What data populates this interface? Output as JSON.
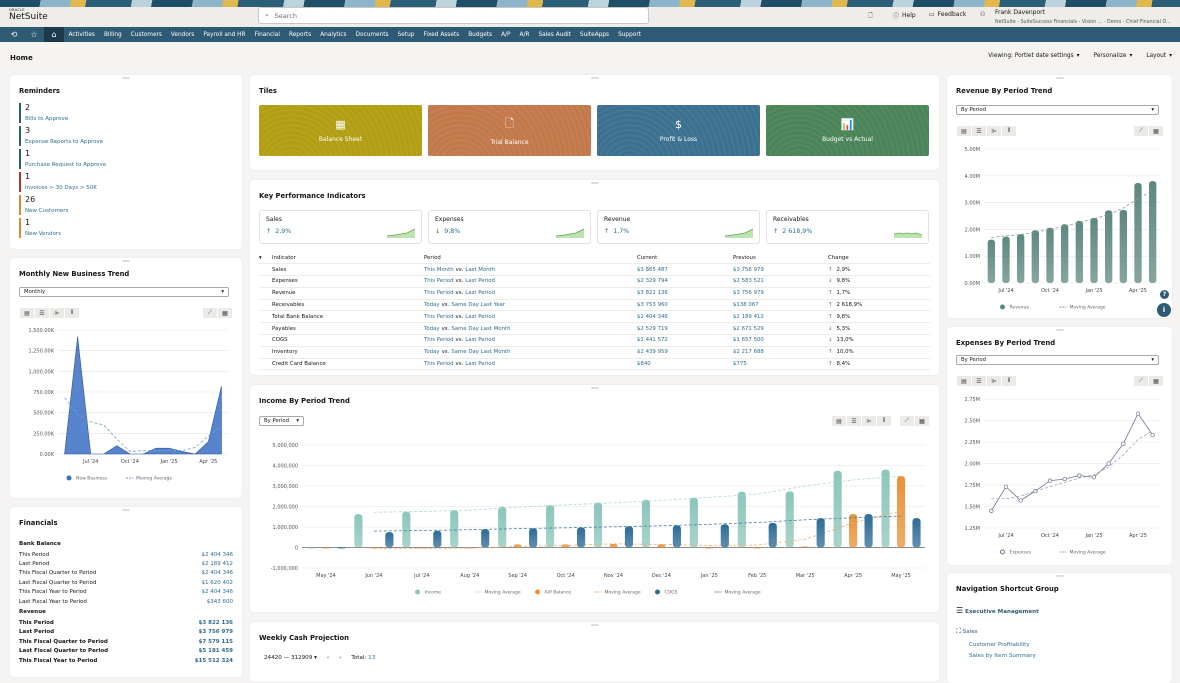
{
  "app": {
    "logo_top": "ORACLE",
    "logo": "NetSuite",
    "search_placeholder": "Search",
    "help": "Help",
    "feedback": "Feedback",
    "user_name": "Frank Davenport",
    "user_role": "NetSuite - SuiteSuccess Financials - Vision ...  - Demo - Chief Financial O..."
  },
  "nav": [
    "Activities",
    "Billing",
    "Customers",
    "Vendors",
    "Payroll and HR",
    "Financial",
    "Reports",
    "Analytics",
    "Documents",
    "Setup",
    "Fixed Assets",
    "Budgets",
    "A/P",
    "A/R",
    "Sales Audit",
    "SuiteApps",
    "Support"
  ],
  "page": {
    "title": "Home",
    "viewing": "Viewing: Portlet date settings",
    "personalize": "Personalize",
    "layout": "Layout"
  },
  "reminders": {
    "title": "Reminders",
    "items": [
      {
        "count": "2",
        "label": "Bills to Approve",
        "color": "#2f5a73"
      },
      {
        "count": "3",
        "label": "Expense Reports to Approve",
        "color": "#2f5a73"
      },
      {
        "count": "1",
        "label": "Purchase Request to Approve",
        "color": "#2f5a73"
      },
      {
        "count": "1",
        "label": "Invoices > 30 Days > 50K",
        "color": "#b8322a"
      },
      {
        "count": "26",
        "label": "New Customers",
        "color": "#d98a2b"
      },
      {
        "count": "1",
        "label": "New Vendors",
        "color": "#d98a2b"
      }
    ]
  },
  "monthly": {
    "title": "Monthly New Business Trend",
    "select": "Monthly"
  },
  "financials": {
    "title": "Financials",
    "bank_title": "Bank Balance",
    "bank": [
      [
        "This Period",
        "$2 404 346"
      ],
      [
        "Last Period",
        "$2 189 412"
      ],
      [
        "This Fiscal Quarter to Period",
        "$2 404 346"
      ],
      [
        "Last Fiscal Quarter to Period",
        "$1 620 402"
      ],
      [
        "This Fiscal Year to Period",
        "$2 404 346"
      ],
      [
        "Last Fiscal Year to Period",
        "$343 600"
      ]
    ],
    "revenue_title": "Revenue",
    "revenue": [
      [
        "This Period",
        "$3 822 136"
      ],
      [
        "Last Period",
        "$3 756 979"
      ],
      [
        "This Fiscal Quarter to Period",
        "$7 579 115"
      ],
      [
        "Last Fiscal Quarter to Period",
        "$5 181 459"
      ],
      [
        "This Fiscal Year to Period",
        "$15 512 324"
      ]
    ]
  },
  "tiles": {
    "title": "Tiles",
    "items": [
      {
        "label": "Balance Sheet",
        "color": "#b29e12",
        "icon": "spreadsheet-edit-icon"
      },
      {
        "label": "Trial Balance",
        "color": "#c2784a",
        "icon": "document-icon"
      },
      {
        "label": "Profit & Loss",
        "color": "#3c7090",
        "icon": "dollar-document-icon"
      },
      {
        "label": "Budget vs Actual",
        "color": "#4a8458",
        "icon": "report-chart-icon"
      }
    ]
  },
  "kpi": {
    "title": "Key Performance Indicators",
    "cards": [
      {
        "label": "Sales",
        "dir": "up",
        "value": "2,9%"
      },
      {
        "label": "Expenses",
        "dir": "down",
        "value": "9,8%"
      },
      {
        "label": "Revenue",
        "dir": "up",
        "value": "1,7%"
      },
      {
        "label": "Receivables",
        "dir": "up",
        "value": "2 618,9%"
      }
    ],
    "headers": [
      "Indicator",
      "Period",
      "Current",
      "Previous",
      "Change"
    ],
    "rows": [
      {
        "indicator": "Sales",
        "p1": "This Month",
        "p2": "Last Month",
        "current": "$3 865 487",
        "previous": "$3 756 979",
        "dir": "up",
        "change": "2,9%"
      },
      {
        "indicator": "Expenses",
        "p1": "This Period",
        "p2": "Last Period",
        "current": "$2 329 794",
        "previous": "$2 583 521",
        "dir": "down",
        "change": "9,8%"
      },
      {
        "indicator": "Revenue",
        "p1": "This Period",
        "p2": "Last Period",
        "current": "$3 822 136",
        "previous": "$3 756 979",
        "dir": "up",
        "change": "1,7%"
      },
      {
        "indicator": "Receivables",
        "p1": "Today",
        "p2": "Same Day Last Year",
        "current": "$3 753 960",
        "previous": "$138 067",
        "dir": "up",
        "change": "2 618,9%"
      },
      {
        "indicator": "Total Bank Balance",
        "p1": "This Period",
        "p2": "Last Period",
        "current": "$2 404 346",
        "previous": "$2 189 412",
        "dir": "up",
        "change": "9,8%"
      },
      {
        "indicator": "Payables",
        "p1": "Today",
        "p2": "Same Day Last Month",
        "current": "$2 529 719",
        "previous": "$2 671 529",
        "dir": "down",
        "change": "5,3%"
      },
      {
        "indicator": "COGS",
        "p1": "This Period",
        "p2": "Last Period",
        "current": "$1 441 572",
        "previous": "$1 657 500",
        "dir": "down",
        "change": "13,0%"
      },
      {
        "indicator": "Inventory",
        "p1": "Today",
        "p2": "Same Day Last Month",
        "current": "$2 439 959",
        "previous": "$2 217 688",
        "dir": "up",
        "change": "10,0%"
      },
      {
        "indicator": "Credit Card Balance",
        "p1": "This Period",
        "p2": "Last Period",
        "current": "$840",
        "previous": "$775",
        "dir": "up",
        "change": "8,4%"
      }
    ],
    "vs": "vs."
  },
  "income": {
    "title": "Income By Period Trend",
    "select": "By Period"
  },
  "weekly": {
    "title": "Weekly Cash Projection",
    "range": "24420 — 312909",
    "total_label": "Total:",
    "total": "13"
  },
  "revenue_trend": {
    "title": "Revenue By Period Trend",
    "select": "By Period"
  },
  "expenses_trend": {
    "title": "Expenses By Period Trend",
    "select": "By Period"
  },
  "shortcuts": {
    "title": "Navigation Shortcut Group",
    "group1": "Executive Management",
    "group2": "Sales",
    "links": [
      "Customer Profitability",
      "Sales by Item Summary"
    ]
  },
  "chart_data": [
    {
      "id": "monthly",
      "type": "area",
      "categories": [
        "May '24",
        "Jun '24",
        "Jul '24",
        "Aug '24",
        "Sep '24",
        "Oct '24",
        "Nov '24",
        "Dec '24",
        "Jan '25",
        "Feb '25",
        "Mar '25",
        "Apr '25",
        "May '25"
      ],
      "x_tick_labels": [
        "Jul '24",
        "Oct '24",
        "Jan '25",
        "Apr '25"
      ],
      "ylim": [
        0,
        1500
      ],
      "y_ticks": [
        0,
        250,
        500,
        750,
        1000,
        1250,
        1500
      ],
      "y_tick_labels": [
        "0.00K",
        "250.00K",
        "500.00K",
        "750.00K",
        "1,000.00K",
        "1,250.00K",
        "1,500.00K"
      ],
      "grid": true,
      "legend": "bottom",
      "series": [
        {
          "name": "New Business",
          "kind": "area",
          "color": "#3a6fc4",
          "values": [
            0,
            1420,
            0,
            0,
            100,
            0,
            0,
            70,
            70,
            30,
            0,
            150,
            820
          ]
        },
        {
          "name": "Moving Average",
          "kind": "dashed",
          "color": "#6aa1e0",
          "values": [
            680,
            480,
            390,
            350,
            180,
            30,
            40,
            40,
            50,
            40,
            80,
            220,
            330
          ]
        }
      ]
    },
    {
      "id": "income",
      "type": "bar",
      "categories": [
        "May '24",
        "Jun '24",
        "Jul '24",
        "Aug '24",
        "Sep '24",
        "Oct '24",
        "Nov '24",
        "Dec '24",
        "Jan '25",
        "Feb '25",
        "Mar '25",
        "Apr '25",
        "May '25"
      ],
      "x_tick_labels": [
        "May '24",
        "Jun '24",
        "Jul '24",
        "Aug '24",
        "Sep '24",
        "Oct '24",
        "Nov '24",
        "Dec '24",
        "Jan '25",
        "Feb '25",
        "Mar '25",
        "Apr '25",
        "May '25"
      ],
      "ylim": [
        -1000000,
        5000000
      ],
      "y_ticks": [
        -1000000,
        0,
        1000000,
        2000000,
        3000000,
        4000000,
        5000000
      ],
      "y_tick_labels": [
        "-1,000,000",
        "0",
        "1,000,000",
        "2,000,000",
        "3,000,000",
        "4,000,000",
        "5,000,000"
      ],
      "grid": true,
      "legend": "bottom",
      "series": [
        {
          "name": "Income",
          "kind": "bar",
          "color": "#8cc5bb",
          "values": [
            0,
            1630000,
            1750000,
            1820000,
            1980000,
            2070000,
            2190000,
            2330000,
            2430000,
            2720000,
            2740000,
            3740000,
            3800000
          ]
        },
        {
          "name": "Moving Average",
          "kind": "dashed",
          "color": "#a9d9d1",
          "values": [
            null,
            1720000,
            1760000,
            1820000,
            1960000,
            2080000,
            2180000,
            2300000,
            2450000,
            2600000,
            3000000,
            3300000,
            3480000
          ]
        },
        {
          "name": "A/P Balance",
          "kind": "bar",
          "color": "#e8923a",
          "values": [
            -50000,
            -50000,
            -50000,
            -50000,
            150000,
            150000,
            170000,
            150000,
            -50000,
            -50000,
            50000,
            1630000,
            3480000
          ]
        },
        {
          "name": "Moving Average",
          "kind": "dashed",
          "color": "#f0b070",
          "values": [
            null,
            -40000,
            -40000,
            -30000,
            50000,
            100000,
            180000,
            150000,
            100000,
            120000,
            400000,
            1200000,
            1780000
          ]
        },
        {
          "name": "COGS",
          "kind": "bar",
          "color": "#2d6b96",
          "values": [
            0,
            750000,
            820000,
            900000,
            930000,
            980000,
            1030000,
            1080000,
            1130000,
            1200000,
            1430000,
            1630000,
            1430000
          ]
        },
        {
          "name": "Moving Average",
          "kind": "dashed",
          "color": "#4a7fa6",
          "values": [
            null,
            800000,
            830000,
            870000,
            920000,
            960000,
            1010000,
            1060000,
            1130000,
            1220000,
            1350000,
            1450000,
            1530000
          ]
        }
      ]
    },
    {
      "id": "revenue",
      "type": "bar",
      "categories": [
        "Jun '24",
        "Jul '24",
        "Aug '24",
        "Sep '24",
        "Oct '24",
        "Nov '24",
        "Dec '24",
        "Jan '25",
        "Feb '25",
        "Mar '25",
        "Apr '25",
        "May '25"
      ],
      "x_tick_labels": [
        "Jul '24",
        "Oct '24",
        "Jan '25",
        "Apr '25"
      ],
      "ylim": [
        0,
        5
      ],
      "y_ticks": [
        0,
        1,
        2,
        3,
        4,
        5
      ],
      "y_tick_labels": [
        "0.00M",
        "1.00M",
        "2.00M",
        "3.00M",
        "4.00M",
        "5.00M"
      ],
      "grid": true,
      "legend": "bottom",
      "series": [
        {
          "name": "Revenue",
          "kind": "bar",
          "color": "#5e8780",
          "values": [
            1.62,
            1.73,
            1.82,
            1.97,
            2.06,
            2.19,
            2.32,
            2.43,
            2.71,
            2.73,
            3.73,
            3.8
          ]
        },
        {
          "name": "Moving Average",
          "kind": "dashed",
          "color": "#8a9a97",
          "values": [
            1.7,
            1.76,
            1.81,
            1.9,
            2.0,
            2.12,
            2.25,
            2.4,
            2.55,
            2.8,
            3.15,
            3.45
          ]
        }
      ]
    },
    {
      "id": "expenses",
      "type": "line",
      "categories": [
        "Jun '24",
        "Jul '24",
        "Aug '24",
        "Sep '24",
        "Oct '24",
        "Nov '24",
        "Dec '24",
        "Jan '25",
        "Feb '25",
        "Mar '25",
        "Apr '25",
        "May '25"
      ],
      "x_tick_labels": [
        "Jul '24",
        "Oct '24",
        "Jan '25",
        "Apr '25"
      ],
      "ylim": [
        1.25,
        2.75
      ],
      "y_ticks": [
        1.25,
        1.5,
        1.75,
        2.0,
        2.25,
        2.5,
        2.75
      ],
      "y_tick_labels": [
        "1.25M",
        "1.50M",
        "1.75M",
        "2.00M",
        "2.25M",
        "2.50M",
        "2.75M"
      ],
      "grid": true,
      "legend": "bottom",
      "series": [
        {
          "name": "Expenses",
          "kind": "line-markers",
          "color": "#6b7394",
          "values": [
            1.45,
            1.73,
            1.57,
            1.68,
            1.8,
            1.82,
            1.86,
            1.84,
            2.0,
            2.23,
            2.58,
            2.33
          ]
        },
        {
          "name": "Moving Average",
          "kind": "dashed",
          "color": "#a0a4b4",
          "values": [
            1.59,
            1.59,
            1.62,
            1.68,
            1.73,
            1.78,
            1.83,
            1.87,
            1.96,
            2.1,
            2.28,
            2.38
          ]
        }
      ]
    }
  ]
}
